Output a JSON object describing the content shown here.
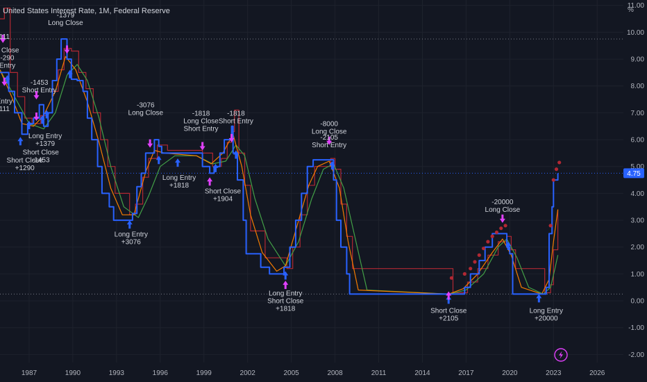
{
  "header": {
    "title": "United States Interest Rate, 1M, Federal Reserve",
    "unit": "%"
  },
  "price_tag": {
    "value": "4.75",
    "color": "#2962ff"
  },
  "colors": {
    "background": "#131722",
    "rate_line": "#2962ff",
    "ma_fast": "#f57c00",
    "ma_slow": "#43a047",
    "step_red": "#b22833",
    "signal_magenta": "#e040fb",
    "signal_blue": "#2962ff",
    "grid": "#1e222d"
  },
  "bolt_icon": "lightning-bolt-icon",
  "chart_data": {
    "type": "line",
    "title": "United States Interest Rate, 1M, Federal Reserve",
    "xlabel": "",
    "ylabel": "%",
    "xlim": [
      1985.0,
      2027.8
    ],
    "ylim": [
      -2.3,
      11.2
    ],
    "grid": false,
    "x_ticks": [
      "1987",
      "1990",
      "1993",
      "1996",
      "1999",
      "2002",
      "2005",
      "2008",
      "2011",
      "2014",
      "2017",
      "2020",
      "2023",
      "2026"
    ],
    "y_ticks": [
      "-2.00",
      "-1.00",
      "0.00",
      "1.00",
      "2.00",
      "3.00",
      "4.00",
      "5.00",
      "6.00",
      "7.00",
      "8.00",
      "9.00",
      "10.00",
      "11.00"
    ],
    "reference_lines": [
      9.75,
      0.25,
      4.75
    ],
    "series": [
      {
        "name": "",
        "role": "rate",
        "x": [
          1985.0,
          1985.6,
          1986.0,
          1986.5,
          1986.9,
          1987.3,
          1987.7,
          1988.0,
          1988.3,
          1988.6,
          1988.9,
          1989.2,
          1989.6,
          1989.9,
          1990.3,
          1990.7,
          1991.0,
          1991.3,
          1991.7,
          1992.0,
          1992.5,
          1992.8,
          1993.9,
          1994.1,
          1994.4,
          1994.7,
          1995.0,
          1995.6,
          1995.9,
          1996.1,
          1997.2,
          1998.7,
          1998.9,
          1999.4,
          1999.7,
          2000.1,
          2000.4,
          2000.9,
          2001.0,
          2001.3,
          2001.7,
          2001.9,
          2002.9,
          2003.5,
          2004.5,
          2004.9,
          2005.3,
          2005.7,
          2006.1,
          2006.5,
          2007.6,
          2007.9,
          2008.1,
          2008.4,
          2008.8,
          2009.0,
          2015.9,
          2016.9,
          2017.3,
          2017.9,
          2018.3,
          2018.8,
          2019.5,
          2019.8,
          2020.0,
          2020.2,
          2022.2,
          2022.5,
          2022.7,
          2022.9,
          2023.0,
          2023.3
        ],
        "y": [
          8.5,
          7.8,
          7.0,
          6.2,
          6.6,
          6.8,
          7.3,
          6.5,
          7.0,
          8.2,
          9.0,
          9.75,
          9.0,
          8.25,
          8.2,
          7.8,
          6.8,
          6.0,
          5.0,
          4.0,
          3.5,
          3.0,
          3.0,
          3.25,
          4.25,
          4.75,
          5.5,
          6.0,
          5.75,
          5.5,
          5.5,
          5.5,
          5.0,
          4.75,
          5.0,
          5.5,
          6.0,
          6.5,
          5.5,
          4.5,
          3.0,
          1.75,
          1.25,
          1.0,
          1.25,
          2.0,
          3.0,
          4.0,
          5.0,
          5.25,
          5.25,
          4.5,
          3.0,
          2.0,
          1.0,
          0.25,
          0.25,
          0.5,
          1.0,
          1.5,
          2.0,
          2.5,
          2.5,
          2.0,
          1.75,
          0.25,
          0.25,
          0.5,
          2.5,
          3.5,
          4.5,
          4.75
        ]
      },
      {
        "name": "",
        "role": "red-step",
        "x": [
          1985.0,
          1985.3,
          1985.7,
          1986.2,
          1986.7,
          1987.2,
          1987.8,
          1988.2,
          1988.6,
          1989.0,
          1989.4,
          1989.9,
          1990.4,
          1990.9,
          1991.4,
          1991.9,
          1992.4,
          1992.9,
          1993.9,
          1994.3,
          1994.8,
          1995.2,
          1995.8,
          1996.5,
          1998.9,
          1999.6,
          2000.2,
          2000.6,
          2000.9,
          2001.1,
          2001.4,
          2001.8,
          2002.2,
          2003.2,
          2004.7,
          2005.1,
          2005.6,
          2006.1,
          2006.6,
          2007.7,
          2008.0,
          2008.4,
          2008.8,
          2009.2,
          2016.1,
          2017.1,
          2017.8,
          2018.5,
          2019.2,
          2019.8,
          2020.1,
          2020.4,
          2022.4,
          2022.8,
          2023.0,
          2023.3
        ],
        "y": [
          10.5,
          10.9,
          8.5,
          7.6,
          6.8,
          6.6,
          6.9,
          7.0,
          7.8,
          8.6,
          9.4,
          9.3,
          8.5,
          7.9,
          7.0,
          6.0,
          5.0,
          4.0,
          3.2,
          3.6,
          4.6,
          5.3,
          5.8,
          5.6,
          5.5,
          5.0,
          5.3,
          5.9,
          6.3,
          7.1,
          5.5,
          4.3,
          2.6,
          1.6,
          1.2,
          2.0,
          3.2,
          4.3,
          5.0,
          5.3,
          4.9,
          3.6,
          2.4,
          1.2,
          0.3,
          0.7,
          1.2,
          1.7,
          2.2,
          2.4,
          1.9,
          1.2,
          0.3,
          0.6,
          1.9,
          3.4
        ]
      },
      {
        "name": "",
        "role": "orange",
        "x": [
          1985.0,
          1985.8,
          1986.5,
          1987.3,
          1988.0,
          1988.8,
          1989.5,
          1990.2,
          1991.0,
          1991.8,
          1992.6,
          1993.4,
          1994.2,
          1995.0,
          1995.6,
          1996.3,
          1998.5,
          1999.5,
          2000.3,
          2001.0,
          2001.6,
          2002.2,
          2003.0,
          2004.0,
          2004.6,
          2005.4,
          2006.2,
          2006.8,
          2007.6,
          2008.3,
          2008.9,
          2009.6,
          2015.8,
          2016.8,
          2017.8,
          2018.8,
          2019.5,
          2020.1,
          2020.8,
          2022.2,
          2022.7,
          2023.0,
          2023.3
        ],
        "y": [
          8.6,
          7.6,
          6.6,
          6.5,
          6.9,
          7.8,
          9.1,
          8.6,
          7.4,
          5.9,
          4.2,
          3.2,
          3.2,
          4.8,
          5.6,
          5.5,
          5.4,
          5.1,
          5.5,
          6.2,
          5.0,
          3.2,
          1.8,
          1.1,
          1.3,
          2.8,
          4.3,
          5.0,
          5.2,
          4.2,
          2.2,
          0.4,
          0.25,
          0.45,
          1.0,
          1.8,
          2.3,
          1.7,
          0.5,
          0.25,
          0.8,
          2.2,
          3.4
        ]
      },
      {
        "name": "",
        "role": "green",
        "x": [
          1985.0,
          1986.0,
          1987.0,
          1988.0,
          1988.8,
          1989.6,
          1990.3,
          1991.0,
          1991.8,
          1992.6,
          1993.5,
          1994.5,
          1995.2,
          1996.0,
          1997.0,
          1998.5,
          1999.6,
          2000.5,
          2001.2,
          2001.8,
          2002.5,
          2003.4,
          2004.6,
          2005.5,
          2006.4,
          2007.2,
          2007.9,
          2008.6,
          2009.4,
          2010.2,
          2015.8,
          2017.0,
          2018.2,
          2019.2,
          2019.8,
          2020.5,
          2021.3,
          2022.3,
          2022.8,
          2023.1,
          2023.3
        ],
        "y": [
          8.6,
          7.6,
          6.6,
          6.4,
          7.0,
          8.4,
          8.8,
          8.2,
          6.8,
          5.0,
          3.5,
          3.1,
          3.9,
          5.0,
          5.4,
          5.4,
          5.1,
          5.2,
          5.8,
          5.4,
          3.8,
          2.3,
          1.3,
          2.2,
          3.8,
          4.9,
          5.1,
          4.2,
          2.3,
          0.4,
          0.25,
          0.4,
          1.0,
          2.0,
          2.3,
          1.6,
          0.5,
          0.25,
          0.5,
          1.2,
          1.7
        ]
      },
      {
        "name": "",
        "role": "dots",
        "x": [
          2016.0,
          2016.9,
          2017.3,
          2017.6,
          2017.9,
          2018.2,
          2018.5,
          2018.8,
          2019.1,
          2019.4,
          2019.7,
          2022.8,
          2023.0,
          2023.2,
          2023.4
        ],
        "y": [
          0.85,
          1.0,
          1.2,
          1.45,
          1.7,
          1.95,
          2.2,
          2.4,
          2.55,
          2.7,
          2.8,
          2.8,
          4.5,
          4.9,
          5.15
        ]
      }
    ],
    "signals": [
      {
        "x": 1985.2,
        "y": 9.6,
        "dir": "down",
        "color": "#e040fb"
      },
      {
        "x": 1985.5,
        "y": 8.4,
        "dir": "up",
        "color": "#2962ff"
      },
      {
        "x": 1985.3,
        "y": 8.0,
        "dir": "down",
        "color": "#e040fb"
      },
      {
        "x": 1986.4,
        "y": 6.1,
        "dir": "up",
        "color": "#2962ff"
      },
      {
        "x": 1987.0,
        "y": 6.7,
        "dir": "up",
        "color": "#2962ff"
      },
      {
        "x": 1987.5,
        "y": 6.7,
        "dir": "down",
        "color": "#e040fb"
      },
      {
        "x": 1987.9,
        "y": 6.9,
        "dir": "up",
        "color": "#2962ff"
      },
      {
        "x": 1988.2,
        "y": 7.1,
        "dir": "up",
        "color": "#2962ff"
      },
      {
        "x": 1987.5,
        "y": 7.5,
        "dir": "down",
        "color": "#e040fb"
      },
      {
        "x": 1989.6,
        "y": 9.2,
        "dir": "down",
        "color": "#e040fb"
      },
      {
        "x": 1989.8,
        "y": 8.6,
        "dir": "up",
        "color": "#2962ff"
      },
      {
        "x": 1993.9,
        "y": 3.0,
        "dir": "up",
        "color": "#2962ff"
      },
      {
        "x": 1995.3,
        "y": 5.7,
        "dir": "down",
        "color": "#e040fb"
      },
      {
        "x": 1995.9,
        "y": 5.4,
        "dir": "up",
        "color": "#2962ff"
      },
      {
        "x": 1997.2,
        "y": 5.3,
        "dir": "up",
        "color": "#2962ff"
      },
      {
        "x": 1998.9,
        "y": 5.6,
        "dir": "down",
        "color": "#e040fb"
      },
      {
        "x": 1999.4,
        "y": 4.6,
        "dir": "up",
        "color": "#e040fb"
      },
      {
        "x": 1999.8,
        "y": 5.1,
        "dir": "up",
        "color": "#2962ff"
      },
      {
        "x": 2000.9,
        "y": 5.9,
        "dir": "down",
        "color": "#e040fb"
      },
      {
        "x": 2001.2,
        "y": 5.6,
        "dir": "up",
        "color": "#2962ff"
      },
      {
        "x": 2004.6,
        "y": 1.1,
        "dir": "up",
        "color": "#2962ff"
      },
      {
        "x": 2004.6,
        "y": 0.75,
        "dir": "up",
        "color": "#e040fb"
      },
      {
        "x": 2007.6,
        "y": 5.8,
        "dir": "down",
        "color": "#e040fb"
      },
      {
        "x": 2007.8,
        "y": 5.2,
        "dir": "up",
        "color": "#2962ff"
      },
      {
        "x": 2015.8,
        "y": 0.2,
        "dir": "up",
        "color": "#2962ff"
      },
      {
        "x": 2015.8,
        "y": 0.35,
        "dir": "up",
        "color": "#e040fb"
      },
      {
        "x": 2019.5,
        "y": 2.9,
        "dir": "down",
        "color": "#e040fb"
      },
      {
        "x": 2019.9,
        "y": 2.2,
        "dir": "up",
        "color": "#2962ff"
      },
      {
        "x": 2022.0,
        "y": 0.25,
        "dir": "up",
        "color": "#2962ff"
      }
    ],
    "annotations": [
      {
        "lines": [
          "-1379",
          "Long Close"
        ],
        "x": 1989.5,
        "y": 10.55
      },
      {
        "lines": [
          "111"
        ],
        "x": 1985.3,
        "y": 9.75
      },
      {
        "lines": [
          "e Close",
          "-290",
          "Entry"
        ],
        "x": 1985.5,
        "y": 9.25
      },
      {
        "lines": [
          "-1453",
          "Short Entry"
        ],
        "x": 1987.7,
        "y": 8.05
      },
      {
        "lines": [
          "Entry",
          "111"
        ],
        "x": 1985.3,
        "y": 7.35
      },
      {
        "lines": [
          "Long Entry",
          "+1379"
        ],
        "x": 1988.1,
        "y": 6.05
      },
      {
        "lines": [
          "Short Close",
          "-1453"
        ],
        "x": 1987.8,
        "y": 5.45
      },
      {
        "lines": [
          "Short Close",
          "+1290"
        ],
        "x": 1986.7,
        "y": 5.15
      },
      {
        "lines": [
          "-3076",
          "Long Close"
        ],
        "x": 1995.0,
        "y": 7.2
      },
      {
        "lines": [
          "-1818",
          "Long Close",
          "Short Entry"
        ],
        "x": 1998.8,
        "y": 6.9
      },
      {
        "lines": [
          "-1818",
          "Short Entry"
        ],
        "x": 2001.2,
        "y": 6.9
      },
      {
        "lines": [
          "Long Entry",
          "+1818"
        ],
        "x": 1997.3,
        "y": 4.5
      },
      {
        "lines": [
          "Short Close",
          "+1904"
        ],
        "x": 2000.3,
        "y": 4.0
      },
      {
        "lines": [
          "Long Entry",
          "+3076"
        ],
        "x": 1994.0,
        "y": 2.4
      },
      {
        "lines": [
          "-8000",
          "Long Close"
        ],
        "x": 2007.6,
        "y": 6.5
      },
      {
        "lines": [
          "-2105",
          "Short Entry"
        ],
        "x": 2007.6,
        "y": 6.0
      },
      {
        "lines": [
          "Long Entry",
          "Short Close",
          "+1818"
        ],
        "x": 2004.6,
        "y": 0.2
      },
      {
        "lines": [
          "Short Close",
          "+2105"
        ],
        "x": 2015.8,
        "y": -0.45
      },
      {
        "lines": [
          "-20000",
          "Long Close"
        ],
        "x": 2019.5,
        "y": 3.6
      },
      {
        "lines": [
          "Long Entry",
          "+20000"
        ],
        "x": 2022.5,
        "y": -0.45
      }
    ]
  }
}
